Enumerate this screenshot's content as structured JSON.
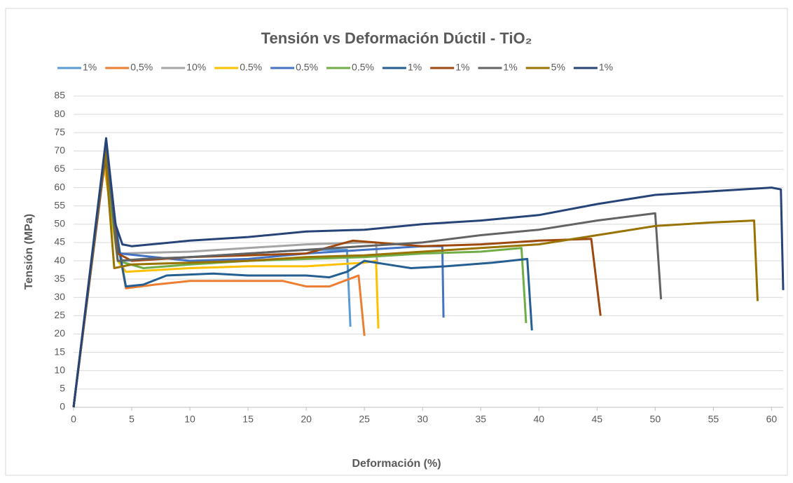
{
  "chart_data": {
    "type": "line",
    "title": "Tensión vs Deformación Dúctil - TiO₂",
    "x_label": "Deformación (%)",
    "y_label": "Tensión (MPa)",
    "xlim": [
      0,
      61
    ],
    "xticks": [
      0,
      5,
      10,
      15,
      20,
      25,
      30,
      35,
      40,
      45,
      50,
      55,
      60
    ],
    "ylim": [
      0,
      85
    ],
    "yticks": [
      0,
      5,
      10,
      15,
      20,
      25,
      30,
      35,
      40,
      45,
      50,
      55,
      60,
      65,
      70,
      75,
      80,
      85
    ],
    "grid": true,
    "legend": "top",
    "series": [
      {
        "name": "1%",
        "color": "#5b9bd5",
        "x": [
          0,
          2.7,
          3.6,
          4.2,
          10,
          15,
          20,
          23.5,
          23.8
        ],
        "values": [
          0,
          68,
          45,
          40,
          41,
          42,
          43,
          43,
          22
        ]
      },
      {
        "name": "0,5%",
        "color": "#ed7d31",
        "x": [
          0,
          2.6,
          3.8,
          4.5,
          7,
          10,
          15,
          18,
          20,
          22,
          24.5,
          25
        ],
        "values": [
          0,
          66,
          45,
          32.5,
          33.5,
          34.5,
          34.5,
          34.5,
          33,
          33,
          36,
          19.5
        ]
      },
      {
        "name": "10%",
        "color": "#a5a5a5",
        "x": [
          0,
          2.7,
          4,
          10,
          15,
          20,
          25,
          26,
          26.1
        ],
        "values": [
          0,
          69,
          42,
          42.5,
          43.5,
          44.5,
          45,
          45,
          39
        ]
      },
      {
        "name": "0.5%",
        "color": "#ffc000",
        "x": [
          0,
          2.6,
          3.8,
          4.5,
          10,
          15,
          20,
          25,
          26,
          26.2
        ],
        "values": [
          0,
          67,
          40,
          37,
          38,
          38.5,
          38.5,
          39.5,
          40,
          21.5
        ]
      },
      {
        "name": "0.5%",
        "color": "#4472c4",
        "x": [
          0,
          2.7,
          4,
          10,
          15,
          20,
          25,
          30,
          31.7,
          31.8
        ],
        "values": [
          0,
          68,
          42,
          40,
          40.5,
          42,
          43,
          44,
          44,
          24.5
        ]
      },
      {
        "name": "0.5%",
        "color": "#70ad47",
        "x": [
          0,
          2.7,
          3.8,
          6,
          10,
          15,
          20,
          25,
          30,
          35,
          38.5,
          38.9
        ],
        "values": [
          0,
          69,
          40,
          38,
          39,
          40,
          40.5,
          41,
          42,
          42.5,
          43.5,
          23
        ]
      },
      {
        "name": "1%",
        "color": "#255e91",
        "x": [
          0,
          2.8,
          3.8,
          4.5,
          6,
          8,
          12,
          15,
          20,
          22,
          23.5,
          25,
          27,
          29,
          32,
          36,
          39,
          39.4
        ],
        "values": [
          0,
          72,
          45,
          33,
          33.5,
          36,
          36.5,
          36,
          36,
          35.5,
          37,
          40,
          39,
          38,
          38.5,
          39.5,
          40.5,
          21
        ]
      },
      {
        "name": "1%",
        "color": "#9e480e",
        "x": [
          0,
          2.8,
          3.8,
          5,
          10,
          15,
          20,
          24,
          30,
          35,
          40,
          44.5,
          45.3
        ],
        "values": [
          0,
          70,
          42,
          40,
          41,
          41.5,
          42,
          45.5,
          44,
          44.5,
          45.5,
          46,
          25
        ]
      },
      {
        "name": "1%",
        "color": "#636363",
        "x": [
          0,
          2.8,
          3.8,
          6,
          10,
          15,
          20,
          30,
          35,
          40,
          45,
          50,
          50.5
        ],
        "values": [
          0,
          71,
          40,
          40.5,
          41,
          42,
          43,
          45,
          47,
          48.5,
          51,
          53,
          29.5
        ]
      },
      {
        "name": "5%",
        "color": "#997300",
        "x": [
          0,
          2.7,
          3.5,
          5,
          10,
          15,
          20,
          25,
          30,
          35,
          40,
          45,
          50,
          55,
          58.5,
          58.8
        ],
        "values": [
          0,
          70,
          38,
          39,
          39.5,
          40,
          41,
          41.5,
          42.5,
          43.5,
          44.5,
          47,
          49.5,
          50.5,
          51,
          29
        ]
      },
      {
        "name": "1%",
        "color": "#264478",
        "x": [
          0,
          2.8,
          3.6,
          4.2,
          5,
          10,
          15,
          20,
          25,
          30,
          35,
          40,
          45,
          50,
          55,
          60,
          60.8,
          61
        ],
        "values": [
          0,
          73.5,
          50,
          44.5,
          44,
          45.5,
          46.5,
          48,
          48.5,
          50,
          51,
          52.5,
          55.5,
          58,
          59,
          60,
          59.5,
          32
        ]
      }
    ]
  }
}
